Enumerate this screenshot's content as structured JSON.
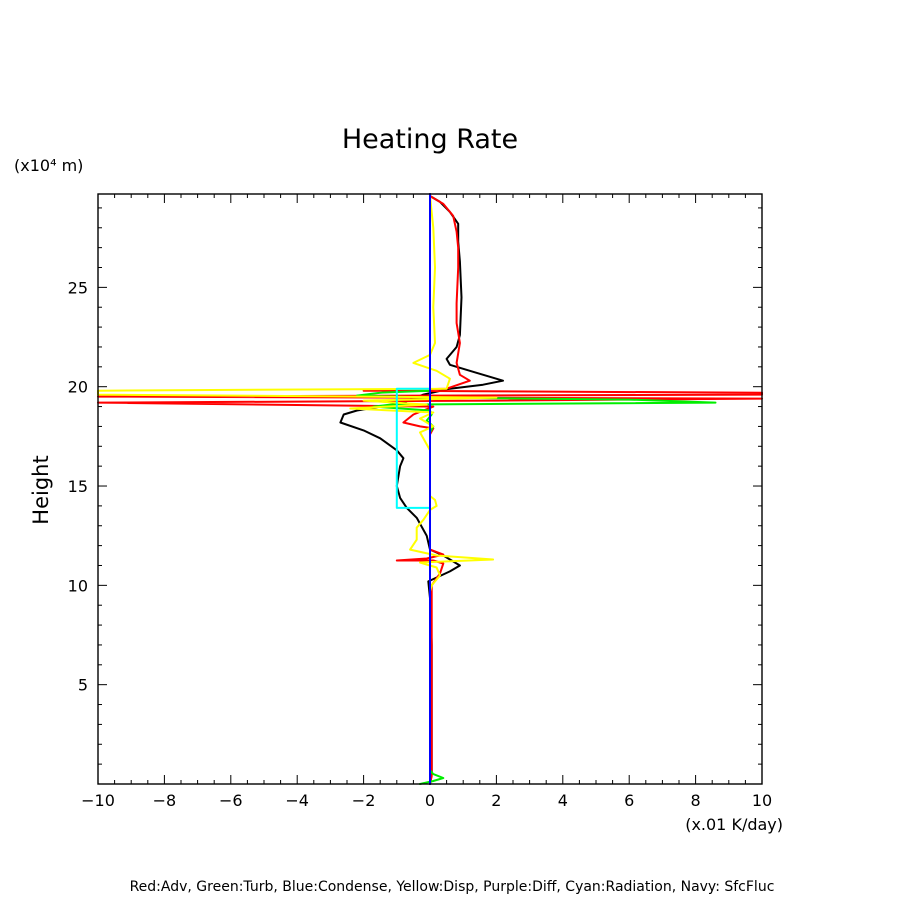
{
  "chart_data": {
    "type": "line",
    "title": "Heating Rate",
    "xlabel": "(x.01 K/day)",
    "ylabel": "Height",
    "y_unit": "(x10⁴ m)",
    "xlim": [
      -10,
      10
    ],
    "ylim": [
      0,
      29.7
    ],
    "x_ticks": [
      -10,
      -8,
      -6,
      -4,
      -2,
      0,
      2,
      4,
      6,
      8,
      10
    ],
    "y_ticks": [
      5,
      10,
      15,
      20,
      25
    ],
    "grid": false,
    "legend_text": "Red:Adv, Green:Turb, Blue:Condense, Yellow:Disp, Purple:Diff, Cyan:Radiation, Navy: SfcFluc",
    "series": [
      {
        "key": "total",
        "color": "#000000",
        "points": [
          [
            0,
            0
          ],
          [
            0.05,
            0.5
          ],
          [
            0.05,
            7
          ],
          [
            0.02,
            9
          ],
          [
            -0.05,
            10.2
          ],
          [
            0.6,
            10.7
          ],
          [
            0.9,
            11.0
          ],
          [
            0.4,
            11.5
          ],
          [
            0,
            11.8
          ],
          [
            -0.1,
            12.5
          ],
          [
            -0.4,
            13.4
          ],
          [
            -0.7,
            13.9
          ],
          [
            -0.9,
            14.4
          ],
          [
            -1.0,
            15.0
          ],
          [
            -0.9,
            16.0
          ],
          [
            -0.8,
            16.4
          ],
          [
            -1.0,
            16.8
          ],
          [
            -1.5,
            17.4
          ],
          [
            -2.0,
            17.8
          ],
          [
            -2.7,
            18.2
          ],
          [
            -2.6,
            18.6
          ],
          [
            -2.2,
            18.8
          ],
          [
            -1.5,
            19.0
          ],
          [
            -0.8,
            19.2
          ],
          [
            -0.2,
            19.6
          ],
          [
            0.6,
            19.9
          ],
          [
            1.6,
            20.1
          ],
          [
            2.2,
            20.3
          ],
          [
            1.4,
            20.7
          ],
          [
            0.6,
            21.1
          ],
          [
            0.5,
            21.4
          ],
          [
            0.8,
            22.0
          ],
          [
            0.9,
            22.6
          ],
          [
            0.95,
            24.5
          ],
          [
            0.9,
            26.3
          ],
          [
            0.85,
            27.3
          ],
          [
            0.85,
            28.2
          ],
          [
            0.6,
            28.8
          ],
          [
            0.3,
            29.3
          ],
          [
            0,
            29.6
          ]
        ]
      },
      {
        "key": "Adv",
        "color": "#ff0000",
        "points": [
          [
            0,
            0
          ],
          [
            0.05,
            0.4
          ],
          [
            0.05,
            7
          ],
          [
            0.05,
            10.0
          ],
          [
            0.3,
            10.6
          ],
          [
            0.4,
            11.1
          ],
          [
            0.1,
            11.25
          ],
          [
            -1.0,
            11.25
          ],
          [
            -0.1,
            11.35
          ],
          [
            0.4,
            11.55
          ],
          [
            0,
            11.8
          ],
          [
            0,
            17.6
          ],
          [
            0.1,
            17.9
          ],
          [
            -0.3,
            18.0
          ],
          [
            -0.8,
            18.2
          ],
          [
            -0.5,
            18.6
          ],
          [
            -0.2,
            18.8
          ],
          [
            0.1,
            19.0
          ],
          [
            -10,
            19.2
          ],
          [
            2,
            19.3
          ],
          [
            10,
            19.4
          ],
          [
            -10,
            19.5
          ],
          [
            10,
            19.6
          ],
          [
            10,
            19.7
          ],
          [
            -2,
            19.8
          ],
          [
            0.5,
            19.9
          ],
          [
            1.2,
            20.3
          ],
          [
            0.9,
            20.6
          ],
          [
            0.8,
            21.2
          ],
          [
            0.9,
            22.2
          ],
          [
            0.8,
            23.2
          ],
          [
            0.8,
            24.2
          ],
          [
            0.85,
            26.0
          ],
          [
            0.85,
            27.0
          ],
          [
            0.8,
            27.8
          ],
          [
            0.7,
            28.6
          ],
          [
            0.4,
            29.2
          ],
          [
            0,
            29.6
          ]
        ]
      },
      {
        "key": "Turb",
        "color": "#00ee00",
        "points": [
          [
            -0.3,
            0
          ],
          [
            0.1,
            0.15
          ],
          [
            0.4,
            0.3
          ],
          [
            0.1,
            0.5
          ],
          [
            0,
            0.7
          ],
          [
            0,
            17.7
          ],
          [
            0.1,
            18.0
          ],
          [
            -0.1,
            18.3
          ],
          [
            0.05,
            18.6
          ],
          [
            0,
            18.8
          ],
          [
            -1.7,
            19.0
          ],
          [
            -1.2,
            19.1
          ],
          [
            8.6,
            19.2
          ],
          [
            6.0,
            19.35
          ],
          [
            0,
            19.45
          ],
          [
            -2.2,
            19.55
          ],
          [
            -1.5,
            19.7
          ],
          [
            0,
            19.8
          ],
          [
            0,
            29.6
          ]
        ]
      },
      {
        "key": "Disp",
        "color": "#ffff00",
        "points": [
          [
            0,
            0
          ],
          [
            0,
            9.7
          ],
          [
            0.05,
            10.0
          ],
          [
            0.3,
            10.5
          ],
          [
            0.2,
            10.9
          ],
          [
            -0.3,
            11.15
          ],
          [
            1.9,
            11.3
          ],
          [
            0.2,
            11.5
          ],
          [
            -0.6,
            11.8
          ],
          [
            -0.4,
            12.3
          ],
          [
            -0.4,
            12.9
          ],
          [
            -0.2,
            13.3
          ],
          [
            0,
            13.8
          ],
          [
            0.2,
            14.0
          ],
          [
            0.15,
            14.3
          ],
          [
            0,
            14.5
          ],
          [
            0,
            16.8
          ],
          [
            -0.3,
            17.7
          ],
          [
            0.1,
            18.0
          ],
          [
            -0.3,
            18.4
          ],
          [
            0.1,
            18.7
          ],
          [
            -2.4,
            18.9
          ],
          [
            -0.1,
            19.1
          ],
          [
            -2.0,
            19.3
          ],
          [
            2.0,
            19.45
          ],
          [
            -10,
            19.6
          ],
          [
            -10,
            19.8
          ],
          [
            0.5,
            19.9
          ],
          [
            0.6,
            20.4
          ],
          [
            0.2,
            20.8
          ],
          [
            -0.5,
            21.2
          ],
          [
            0,
            21.6
          ],
          [
            0.15,
            22.2
          ],
          [
            0.1,
            24.0
          ],
          [
            0.15,
            26.0
          ],
          [
            0.1,
            28.0
          ],
          [
            0,
            29.6
          ]
        ]
      },
      {
        "key": "Radiation",
        "color": "#00ffff",
        "points": [
          [
            0,
            13.8
          ],
          [
            0,
            13.9
          ],
          [
            -1.0,
            13.9
          ],
          [
            -1.0,
            19.9
          ],
          [
            0,
            19.9
          ],
          [
            0,
            20.0
          ]
        ]
      },
      {
        "key": "SfcFluc",
        "color": "#000080",
        "points": [
          [
            0,
            0
          ],
          [
            0,
            29.7
          ]
        ]
      },
      {
        "key": "Condense",
        "color": "#0000ff",
        "points": [
          [
            0,
            0
          ],
          [
            0,
            29.7
          ]
        ]
      }
    ]
  }
}
